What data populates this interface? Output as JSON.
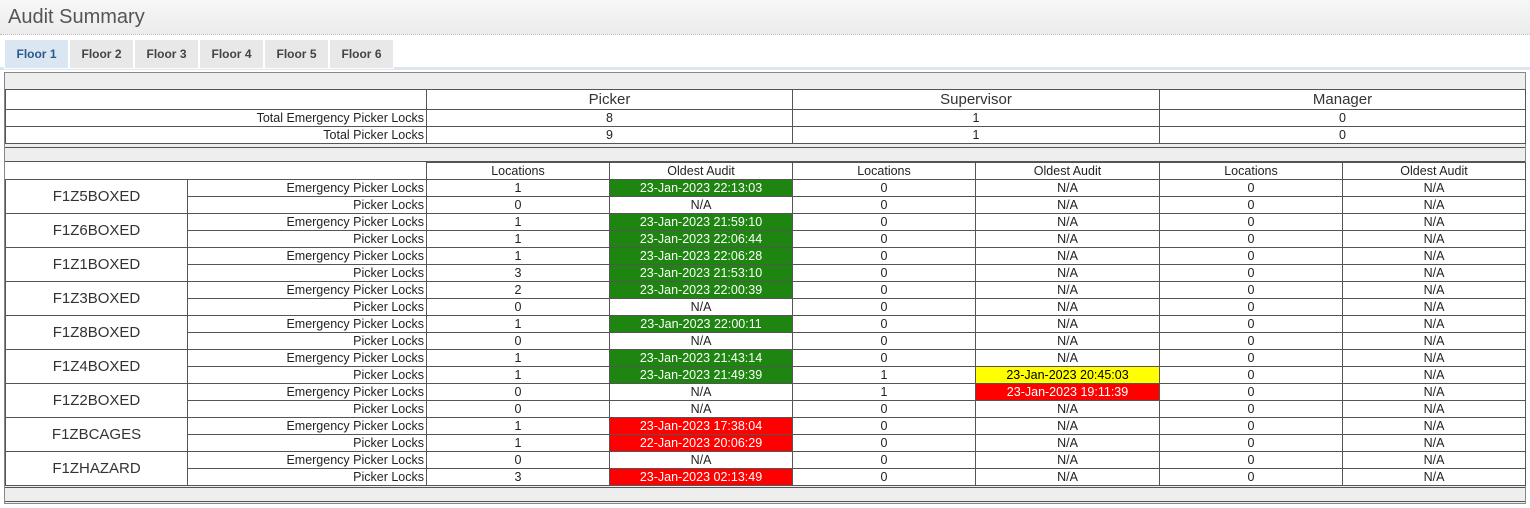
{
  "title": "Audit Summary",
  "tabs": [
    {
      "label": "Floor 1",
      "active": true
    },
    {
      "label": "Floor 2",
      "active": false
    },
    {
      "label": "Floor 3",
      "active": false
    },
    {
      "label": "Floor 4",
      "active": false
    },
    {
      "label": "Floor 5",
      "active": false
    },
    {
      "label": "Floor 6",
      "active": false
    }
  ],
  "roles": [
    "Picker",
    "Supervisor",
    "Manager"
  ],
  "totals": [
    {
      "label": "Total Emergency Picker Locks",
      "values": [
        "8",
        "1",
        "0"
      ]
    },
    {
      "label": "Total Picker Locks",
      "values": [
        "9",
        "1",
        "0"
      ]
    }
  ],
  "column_headers": [
    "Locations",
    "Oldest Audit",
    "Locations",
    "Oldest Audit",
    "Locations",
    "Oldest Audit"
  ],
  "status_colors": {
    "green": "#1e8510",
    "yellow": "#ffff00",
    "red": "#ff0000"
  },
  "zones": [
    {
      "name": "F1Z5BOXED",
      "rows": [
        {
          "type": "Emergency Picker Locks",
          "cells": [
            [
              "1",
              "23-Jan-2023 22:13:03",
              "green"
            ],
            [
              "0",
              "N/A",
              ""
            ],
            [
              "0",
              "N/A",
              ""
            ]
          ]
        },
        {
          "type": "Picker Locks",
          "cells": [
            [
              "0",
              "N/A",
              ""
            ],
            [
              "0",
              "N/A",
              ""
            ],
            [
              "0",
              "N/A",
              ""
            ]
          ]
        }
      ]
    },
    {
      "name": "F1Z6BOXED",
      "rows": [
        {
          "type": "Emergency Picker Locks",
          "cells": [
            [
              "1",
              "23-Jan-2023 21:59:10",
              "green"
            ],
            [
              "0",
              "N/A",
              ""
            ],
            [
              "0",
              "N/A",
              ""
            ]
          ]
        },
        {
          "type": "Picker Locks",
          "cells": [
            [
              "1",
              "23-Jan-2023 22:06:44",
              "green"
            ],
            [
              "0",
              "N/A",
              ""
            ],
            [
              "0",
              "N/A",
              ""
            ]
          ]
        }
      ]
    },
    {
      "name": "F1Z1BOXED",
      "rows": [
        {
          "type": "Emergency Picker Locks",
          "cells": [
            [
              "1",
              "23-Jan-2023 22:06:28",
              "green"
            ],
            [
              "0",
              "N/A",
              ""
            ],
            [
              "0",
              "N/A",
              ""
            ]
          ]
        },
        {
          "type": "Picker Locks",
          "cells": [
            [
              "3",
              "23-Jan-2023 21:53:10",
              "green"
            ],
            [
              "0",
              "N/A",
              ""
            ],
            [
              "0",
              "N/A",
              ""
            ]
          ]
        }
      ]
    },
    {
      "name": "F1Z3BOXED",
      "rows": [
        {
          "type": "Emergency Picker Locks",
          "cells": [
            [
              "2",
              "23-Jan-2023 22:00:39",
              "green"
            ],
            [
              "0",
              "N/A",
              ""
            ],
            [
              "0",
              "N/A",
              ""
            ]
          ]
        },
        {
          "type": "Picker Locks",
          "cells": [
            [
              "0",
              "N/A",
              ""
            ],
            [
              "0",
              "N/A",
              ""
            ],
            [
              "0",
              "N/A",
              ""
            ]
          ]
        }
      ]
    },
    {
      "name": "F1Z8BOXED",
      "rows": [
        {
          "type": "Emergency Picker Locks",
          "cells": [
            [
              "1",
              "23-Jan-2023 22:00:11",
              "green"
            ],
            [
              "0",
              "N/A",
              ""
            ],
            [
              "0",
              "N/A",
              ""
            ]
          ]
        },
        {
          "type": "Picker Locks",
          "cells": [
            [
              "0",
              "N/A",
              ""
            ],
            [
              "0",
              "N/A",
              ""
            ],
            [
              "0",
              "N/A",
              ""
            ]
          ]
        }
      ]
    },
    {
      "name": "F1Z4BOXED",
      "rows": [
        {
          "type": "Emergency Picker Locks",
          "cells": [
            [
              "1",
              "23-Jan-2023 21:43:14",
              "green"
            ],
            [
              "0",
              "N/A",
              ""
            ],
            [
              "0",
              "N/A",
              ""
            ]
          ]
        },
        {
          "type": "Picker Locks",
          "cells": [
            [
              "1",
              "23-Jan-2023 21:49:39",
              "green"
            ],
            [
              "1",
              "23-Jan-2023 20:45:03",
              "yellow"
            ],
            [
              "0",
              "N/A",
              ""
            ]
          ]
        }
      ]
    },
    {
      "name": "F1Z2BOXED",
      "rows": [
        {
          "type": "Emergency Picker Locks",
          "cells": [
            [
              "0",
              "N/A",
              ""
            ],
            [
              "1",
              "23-Jan-2023 19:11:39",
              "red"
            ],
            [
              "0",
              "N/A",
              ""
            ]
          ]
        },
        {
          "type": "Picker Locks",
          "cells": [
            [
              "0",
              "N/A",
              ""
            ],
            [
              "0",
              "N/A",
              ""
            ],
            [
              "0",
              "N/A",
              ""
            ]
          ]
        }
      ]
    },
    {
      "name": "F1ZBCAGES",
      "rows": [
        {
          "type": "Emergency Picker Locks",
          "cells": [
            [
              "1",
              "23-Jan-2023 17:38:04",
              "red"
            ],
            [
              "0",
              "N/A",
              ""
            ],
            [
              "0",
              "N/A",
              ""
            ]
          ]
        },
        {
          "type": "Picker Locks",
          "cells": [
            [
              "1",
              "22-Jan-2023 20:06:29",
              "red"
            ],
            [
              "0",
              "N/A",
              ""
            ],
            [
              "0",
              "N/A",
              ""
            ]
          ]
        }
      ]
    },
    {
      "name": "F1ZHAZARD",
      "rows": [
        {
          "type": "Emergency Picker Locks",
          "cells": [
            [
              "0",
              "N/A",
              ""
            ],
            [
              "0",
              "N/A",
              ""
            ],
            [
              "0",
              "N/A",
              ""
            ]
          ]
        },
        {
          "type": "Picker Locks",
          "cells": [
            [
              "3",
              "23-Jan-2023 02:13:49",
              "red"
            ],
            [
              "0",
              "N/A",
              ""
            ],
            [
              "0",
              "N/A",
              ""
            ]
          ]
        }
      ]
    }
  ]
}
